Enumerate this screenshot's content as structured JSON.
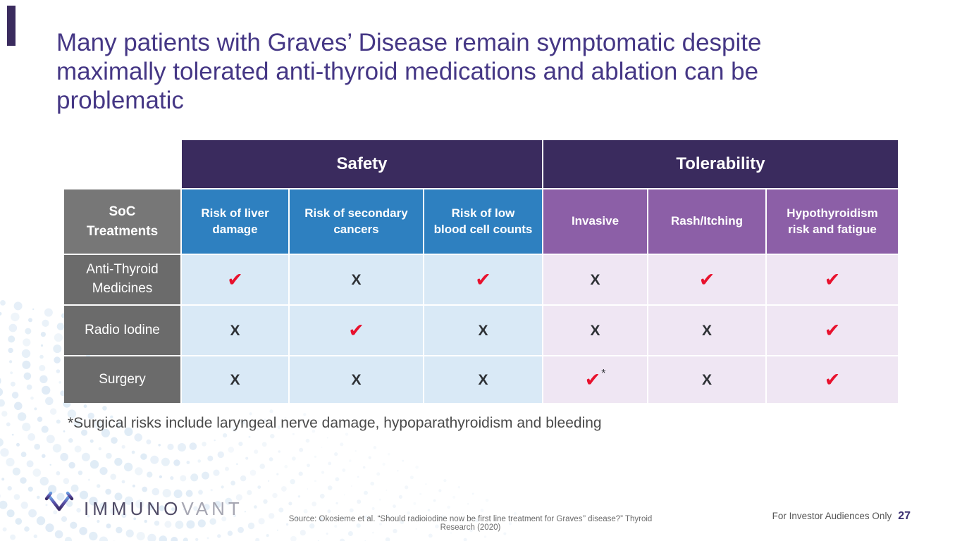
{
  "colors": {
    "title": "#453785",
    "accent_bar": "#3a2b5e",
    "group_header_bg": "#3a2b5e",
    "safety_col_bg": "#2e80c0",
    "tolerability_col_bg": "#8c5fa7",
    "soc_bg": "#777777",
    "row_label_bg": "#6b6b6b",
    "safety_cell_bg": "#d9e9f6",
    "tolerability_cell_bg": "#efe6f3",
    "check": "#e8112d",
    "x_mark": "#2e3135",
    "footnote_text": "#4a4a4a",
    "source_text": "#6b6b6b",
    "audience_text": "#575757",
    "page_number": "#3b2f72",
    "brand_primary": "#504b66",
    "brand_secondary": "#a6a6b2",
    "dots": "#cfe1f1"
  },
  "title": "Many patients with Graves’ Disease remain symptomatic despite\nmaximally tolerated anti-thyroid medications and ablation can be\nproblematic",
  "table": {
    "groups": [
      {
        "label": "Safety"
      },
      {
        "label": "Tolerability"
      }
    ],
    "row_header": "SoC\nTreatments",
    "columns": [
      {
        "label": "Risk of liver\ndamage"
      },
      {
        "label": "Risk of secondary\ncancers"
      },
      {
        "label": "Risk of low\nblood cell counts"
      },
      {
        "label": "Invasive"
      },
      {
        "label": "Rash/Itching"
      },
      {
        "label": "Hypothyroidism\nrisk and fatigue"
      }
    ],
    "rows": [
      {
        "label": "Anti-Thyroid\nMedicines",
        "cells": [
          "check",
          "x",
          "check",
          "x",
          "check",
          "check"
        ]
      },
      {
        "label": "Radio Iodine",
        "cells": [
          "x",
          "check",
          "x",
          "x",
          "x",
          "check"
        ]
      },
      {
        "label": "Surgery",
        "cells": [
          "x",
          "x",
          "x",
          "check_asterisk",
          "x",
          "check"
        ]
      }
    ],
    "marks": {
      "check": "✔",
      "x": "X",
      "asterisk": "*"
    }
  },
  "footnote": "*Surgical risks include laryngeal nerve damage, hypoparathyroidism and bleeding",
  "footer": {
    "brand_primary": "IMMUNO",
    "brand_secondary": "VANT",
    "source": "Source: Okosieme et al. “Should radioiodine now be first line treatment for Graves’’ disease?” Thyroid Research (2020)",
    "audience": "For Investor Audiences Only",
    "page_number": "27"
  }
}
